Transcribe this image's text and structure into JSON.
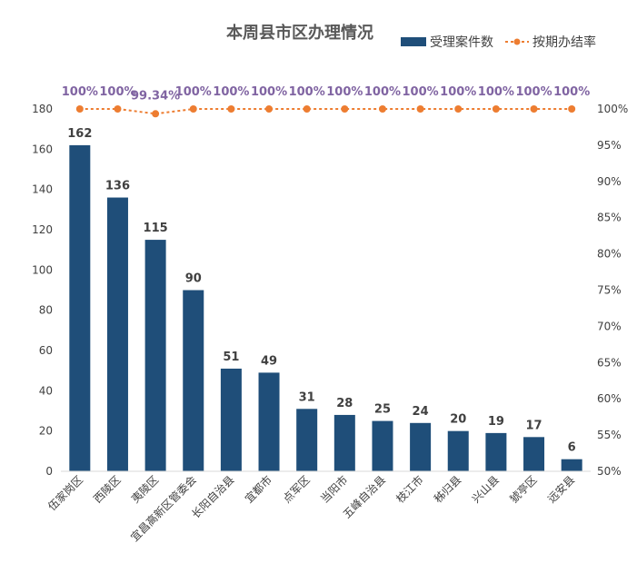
{
  "chart_data": {
    "type": "bar",
    "title": "本周县市区办理情况",
    "categories": [
      "伍家岗区",
      "西陵区",
      "夷陵区",
      "宜昌高新区管委会",
      "长阳自治县",
      "宜都市",
      "点军区",
      "当阳市",
      "五峰自治县",
      "枝江市",
      "秭归县",
      "兴山县",
      "猇亭区",
      "远安县"
    ],
    "series": [
      {
        "name": "受理案件数",
        "type": "bar",
        "axis": "left",
        "color": "#1f4e79",
        "values": [
          162,
          136,
          115,
          90,
          51,
          49,
          31,
          28,
          25,
          24,
          20,
          19,
          17,
          6
        ],
        "labels": [
          "162",
          "136",
          "115",
          "90",
          "51",
          "49",
          "31",
          "28",
          "25",
          "24",
          "20",
          "19",
          "17",
          "6"
        ]
      },
      {
        "name": "按期办结率",
        "type": "line",
        "axis": "right",
        "color": "#ed7d31",
        "values": [
          100,
          100,
          99.34,
          100,
          100,
          100,
          100,
          100,
          100,
          100,
          100,
          100,
          100,
          100
        ],
        "labels": [
          "100%",
          "100%",
          "99.34%",
          "100%",
          "100%",
          "100%",
          "100%",
          "100%",
          "100%",
          "100%",
          "100%",
          "100%",
          "100%",
          "100%"
        ]
      }
    ],
    "y_left": {
      "ylim": [
        0,
        180
      ],
      "ticks": [
        "0",
        "20",
        "40",
        "60",
        "80",
        "100",
        "120",
        "140",
        "160",
        "180"
      ]
    },
    "y_right": {
      "ylim": [
        50,
        100
      ],
      "ticks": [
        "50%",
        "55%",
        "60%",
        "65%",
        "70%",
        "75%",
        "80%",
        "85%",
        "90%",
        "95%",
        "100%"
      ]
    },
    "legend_position": "top-right",
    "grid": false
  }
}
